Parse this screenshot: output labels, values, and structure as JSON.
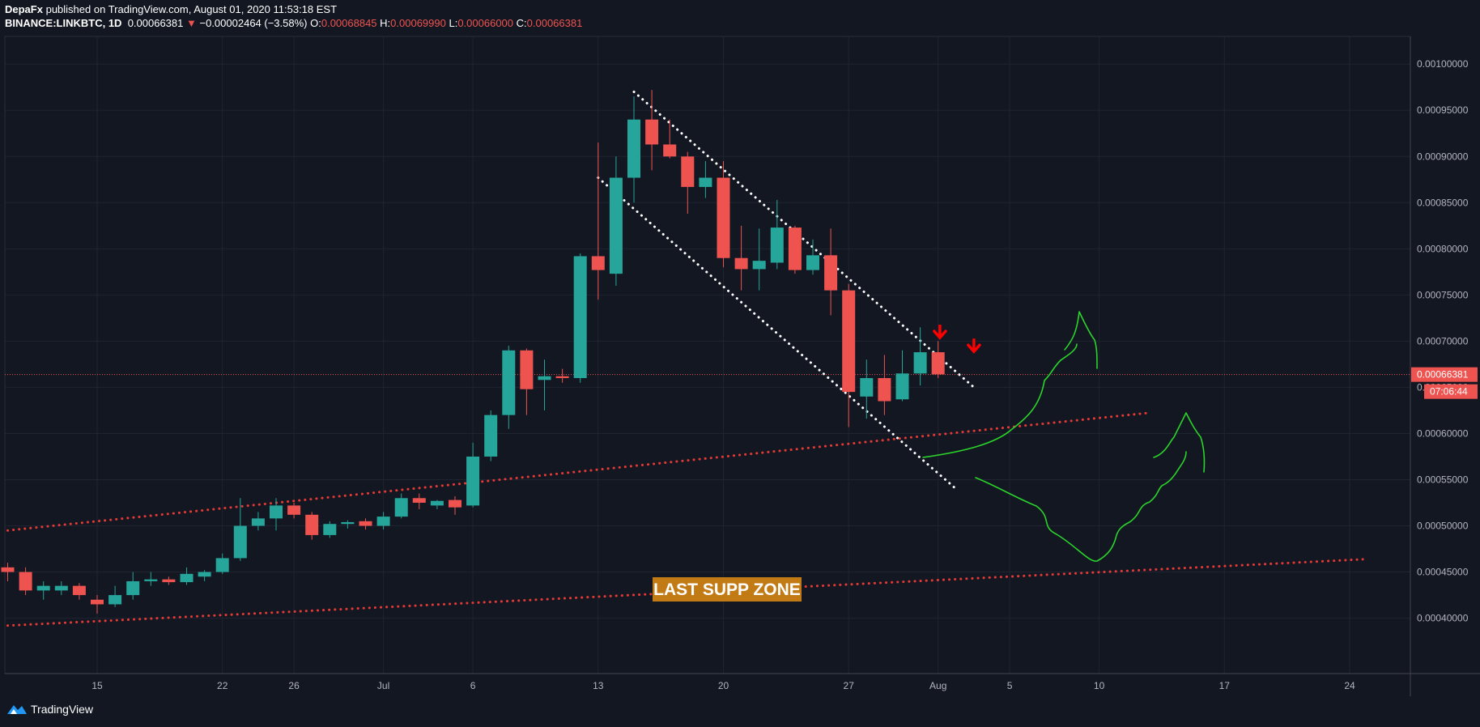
{
  "header": {
    "author": "DepaFx",
    "published_text": "published on TradingView.com, August 01, 2020 11:53:18 EST",
    "symbol": "BINANCE:LINKBTC, 1D",
    "last": "0.00066381",
    "change_arrow": "▼",
    "change": "−0.00002464 (−3.58%)",
    "o_label": "O:",
    "o_value": "0.00068845",
    "h_label": "H:",
    "h_value": "0.00069990",
    "l_label": "L:",
    "l_value": "0.00066000",
    "c_label": "C:",
    "c_value": "0.00066381"
  },
  "footer": {
    "brand": "TradingView",
    "icon": "tradingview-logo-icon"
  },
  "chart_data": {
    "type": "candlestick",
    "symbol": "BINANCE:LINKBTC",
    "timeframe": "1D",
    "x_range": [
      10.5,
      45.5
    ],
    "ylim": [
      0.00034,
      0.00103
    ],
    "grid": true,
    "y_ticks": [
      "0.00100000",
      "0.00095000",
      "0.00090000",
      "0.00085000",
      "0.00080000",
      "0.00075000",
      "0.00070000",
      "0.00065000",
      "0.00060000",
      "0.00055000",
      "0.00050000",
      "0.00045000",
      "0.00040000"
    ],
    "x_ticks": [
      {
        "label": "15",
        "x": 15
      },
      {
        "label": "22",
        "x": 22
      },
      {
        "label": "26",
        "x": 26
      },
      {
        "label": "Jul",
        "x": 31
      },
      {
        "label": "6",
        "x": 36
      },
      {
        "label": "13",
        "x": 43
      },
      {
        "label": "20",
        "x": 50
      },
      {
        "label": "27",
        "x": 57
      },
      {
        "label": "Aug",
        "x": 62
      },
      {
        "label": "5",
        "x": 66
      },
      {
        "label": "10",
        "x": 71
      },
      {
        "label": "17",
        "x": 78
      },
      {
        "label": "24",
        "x": 85
      }
    ],
    "last_price_label": "0.00066381",
    "countdown_label": "07:06:44",
    "annotation": "LAST SUPP ZONE",
    "colors": {
      "up": "#26a69a",
      "down": "#ef5350",
      "grid": "#1f2430",
      "trend_red": "#e53935",
      "trend_white": "#ffffff",
      "arrow": "#ff0000",
      "sketch": "#2bd42b",
      "zone_bg": "#c27a15"
    },
    "candles": [
      {
        "x": 10,
        "o": 0.000455,
        "h": 0.00046,
        "l": 0.00044,
        "c": 0.00045
      },
      {
        "x": 11,
        "o": 0.00045,
        "h": 0.000455,
        "l": 0.000425,
        "c": 0.00043
      },
      {
        "x": 12,
        "o": 0.00043,
        "h": 0.00044,
        "l": 0.00042,
        "c": 0.000435
      },
      {
        "x": 13,
        "o": 0.00043,
        "h": 0.00044,
        "l": 0.000425,
        "c": 0.000435
      },
      {
        "x": 14,
        "o": 0.000435,
        "h": 0.000438,
        "l": 0.00042,
        "c": 0.000425
      },
      {
        "x": 15,
        "o": 0.00042,
        "h": 0.000425,
        "l": 0.000405,
        "c": 0.000415
      },
      {
        "x": 16,
        "o": 0.000415,
        "h": 0.000435,
        "l": 0.000412,
        "c": 0.000425
      },
      {
        "x": 17,
        "o": 0.000425,
        "h": 0.00045,
        "l": 0.00042,
        "c": 0.00044
      },
      {
        "x": 18,
        "o": 0.00044,
        "h": 0.00045,
        "l": 0.000435,
        "c": 0.000442
      },
      {
        "x": 19,
        "o": 0.000442,
        "h": 0.000445,
        "l": 0.000436,
        "c": 0.000439
      },
      {
        "x": 20,
        "o": 0.000439,
        "h": 0.000455,
        "l": 0.000436,
        "c": 0.000448
      },
      {
        "x": 21,
        "o": 0.000445,
        "h": 0.000452,
        "l": 0.00044,
        "c": 0.00045
      },
      {
        "x": 22,
        "o": 0.00045,
        "h": 0.00047,
        "l": 0.000448,
        "c": 0.000465
      },
      {
        "x": 23,
        "o": 0.000465,
        "h": 0.00053,
        "l": 0.000462,
        "c": 0.0005
      },
      {
        "x": 24,
        "o": 0.0005,
        "h": 0.000515,
        "l": 0.000495,
        "c": 0.000508
      },
      {
        "x": 25,
        "o": 0.000508,
        "h": 0.00053,
        "l": 0.000495,
        "c": 0.000522
      },
      {
        "x": 26,
        "o": 0.000522,
        "h": 0.000525,
        "l": 0.000508,
        "c": 0.000512
      },
      {
        "x": 27,
        "o": 0.000512,
        "h": 0.000515,
        "l": 0.000485,
        "c": 0.00049
      },
      {
        "x": 28,
        "o": 0.00049,
        "h": 0.000505,
        "l": 0.000487,
        "c": 0.000502
      },
      {
        "x": 29,
        "o": 0.000502,
        "h": 0.000506,
        "l": 0.000497,
        "c": 0.000504
      },
      {
        "x": 30,
        "o": 0.000505,
        "h": 0.000508,
        "l": 0.000496,
        "c": 0.0005
      },
      {
        "x": 31,
        "o": 0.0005,
        "h": 0.000515,
        "l": 0.000496,
        "c": 0.00051
      },
      {
        "x": 32,
        "o": 0.00051,
        "h": 0.000535,
        "l": 0.000508,
        "c": 0.00053
      },
      {
        "x": 33,
        "o": 0.00053,
        "h": 0.000535,
        "l": 0.000518,
        "c": 0.000525
      },
      {
        "x": 34,
        "o": 0.000522,
        "h": 0.000528,
        "l": 0.000518,
        "c": 0.000527
      },
      {
        "x": 35,
        "o": 0.000528,
        "h": 0.000532,
        "l": 0.000512,
        "c": 0.00052
      },
      {
        "x": 36,
        "o": 0.000522,
        "h": 0.00059,
        "l": 0.00052,
        "c": 0.000575
      },
      {
        "x": 37,
        "o": 0.000575,
        "h": 0.000625,
        "l": 0.00057,
        "c": 0.00062
      },
      {
        "x": 38,
        "o": 0.00062,
        "h": 0.000695,
        "l": 0.000605,
        "c": 0.00069
      },
      {
        "x": 39,
        "o": 0.00069,
        "h": 0.000692,
        "l": 0.00062,
        "c": 0.000648
      },
      {
        "x": 40,
        "o": 0.000658,
        "h": 0.00068,
        "l": 0.000625,
        "c": 0.000662
      },
      {
        "x": 41,
        "o": 0.000662,
        "h": 0.00067,
        "l": 0.000655,
        "c": 0.00066
      },
      {
        "x": 42,
        "o": 0.00066,
        "h": 0.000795,
        "l": 0.000655,
        "c": 0.000792
      },
      {
        "x": 43,
        "o": 0.000792,
        "h": 0.000915,
        "l": 0.000745,
        "c": 0.000777
      },
      {
        "x": 44,
        "o": 0.000773,
        "h": 0.0009,
        "l": 0.00076,
        "c": 0.000877
      },
      {
        "x": 45,
        "o": 0.000877,
        "h": 0.000965,
        "l": 0.00085,
        "c": 0.00094
      },
      {
        "x": 46,
        "o": 0.00094,
        "h": 0.000972,
        "l": 0.000885,
        "c": 0.000913
      },
      {
        "x": 47,
        "o": 0.000913,
        "h": 0.00094,
        "l": 0.000898,
        "c": 0.0009
      },
      {
        "x": 48,
        "o": 0.0009,
        "h": 0.000905,
        "l": 0.000838,
        "c": 0.000867
      },
      {
        "x": 49,
        "o": 0.000867,
        "h": 0.000895,
        "l": 0.000855,
        "c": 0.000877
      },
      {
        "x": 50,
        "o": 0.000877,
        "h": 0.000895,
        "l": 0.00078,
        "c": 0.00079
      },
      {
        "x": 51,
        "o": 0.00079,
        "h": 0.000825,
        "l": 0.000755,
        "c": 0.000778
      },
      {
        "x": 52,
        "o": 0.000778,
        "h": 0.000822,
        "l": 0.000755,
        "c": 0.000787
      },
      {
        "x": 53,
        "o": 0.000785,
        "h": 0.000853,
        "l": 0.000778,
        "c": 0.000823
      },
      {
        "x": 54,
        "o": 0.000823,
        "h": 0.000825,
        "l": 0.000773,
        "c": 0.000777
      },
      {
        "x": 55,
        "o": 0.000777,
        "h": 0.00081,
        "l": 0.000772,
        "c": 0.000793
      },
      {
        "x": 56,
        "o": 0.000793,
        "h": 0.000822,
        "l": 0.000728,
        "c": 0.000755
      },
      {
        "x": 57,
        "o": 0.000755,
        "h": 0.000762,
        "l": 0.000607,
        "c": 0.000645
      },
      {
        "x": 58,
        "o": 0.00064,
        "h": 0.00068,
        "l": 0.000616,
        "c": 0.00066
      },
      {
        "x": 59,
        "o": 0.00066,
        "h": 0.000685,
        "l": 0.00062,
        "c": 0.000635
      },
      {
        "x": 60,
        "o": 0.000637,
        "h": 0.00069,
        "l": 0.000635,
        "c": 0.000665
      },
      {
        "x": 61,
        "o": 0.000665,
        "h": 0.000715,
        "l": 0.000652,
        "c": 0.000688
      },
      {
        "x": 62,
        "o": 0.000688,
        "h": 0.0007,
        "l": 0.00066,
        "c": 0.000664
      }
    ],
    "trendlines": [
      {
        "color": "red",
        "points": [
          [
            10.0,
            0.000495
          ],
          [
            73.6,
            0.000622
          ]
        ]
      },
      {
        "color": "red",
        "points": [
          [
            10.0,
            0.000392
          ],
          [
            86.0,
            0.000464
          ]
        ]
      },
      {
        "color": "white",
        "points": [
          [
            45.0,
            0.00097
          ],
          [
            64.0,
            0.00065
          ]
        ]
      },
      {
        "color": "white",
        "points": [
          [
            43.0,
            0.000877
          ],
          [
            63.0,
            0.00054
          ]
        ]
      }
    ],
    "arrows": [
      {
        "x": 62.1,
        "y": 0.000702
      },
      {
        "x": 64.0,
        "y": 0.000687
      }
    ]
  }
}
